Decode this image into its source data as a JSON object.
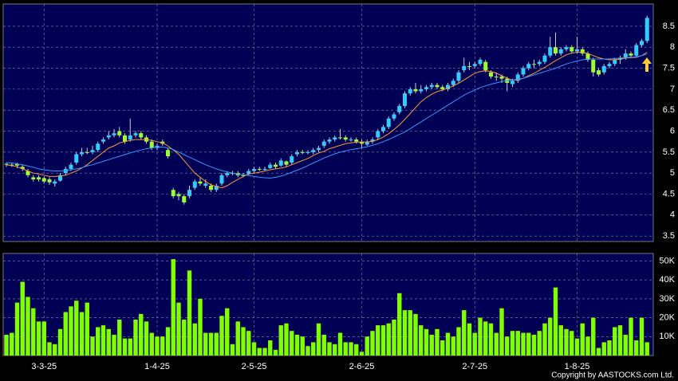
{
  "chart_data": [
    {
      "type": "candlestick",
      "categories": [
        null,
        null,
        null,
        null,
        null,
        null,
        null,
        "3-3-25",
        null,
        null,
        null,
        null,
        null,
        null,
        null,
        null,
        null,
        null,
        null,
        null,
        null,
        null,
        null,
        null,
        null,
        null,
        null,
        null,
        "1-4-25",
        null,
        null,
        null,
        null,
        null,
        null,
        null,
        null,
        null,
        null,
        null,
        null,
        null,
        null,
        null,
        null,
        null,
        "2-5-25",
        null,
        null,
        null,
        null,
        null,
        null,
        null,
        null,
        null,
        null,
        null,
        null,
        null,
        null,
        null,
        null,
        null,
        null,
        null,
        "2-6-25",
        null,
        null,
        null,
        null,
        null,
        null,
        null,
        null,
        null,
        null,
        null,
        null,
        null,
        null,
        null,
        null,
        null,
        null,
        null,
        null,
        "2-7-25",
        null,
        null,
        null,
        null,
        null,
        null,
        null,
        null,
        null,
        null,
        null,
        null,
        null,
        null,
        null,
        null,
        null,
        null,
        "1-8-25",
        null,
        null,
        null,
        null,
        null,
        null,
        null,
        null,
        null,
        null,
        null,
        null,
        null
      ],
      "ohlc": [
        [
          5.22,
          5.25,
          5.15,
          5.2
        ],
        [
          5.2,
          5.25,
          5.15,
          5.2
        ],
        [
          5.22,
          5.25,
          5.12,
          5.18
        ],
        [
          5.15,
          5.2,
          5.05,
          5.1
        ],
        [
          5.05,
          5.1,
          4.9,
          4.95
        ],
        [
          4.9,
          4.95,
          4.8,
          4.85
        ],
        [
          4.9,
          4.95,
          4.8,
          4.85
        ],
        [
          4.88,
          4.92,
          4.75,
          4.8
        ],
        [
          4.85,
          4.9,
          4.72,
          4.78
        ],
        [
          4.75,
          4.85,
          4.68,
          4.8
        ],
        [
          4.82,
          5.0,
          4.8,
          4.95
        ],
        [
          5.0,
          5.15,
          4.95,
          5.1
        ],
        [
          5.1,
          5.25,
          5.05,
          5.2
        ],
        [
          5.25,
          5.5,
          5.2,
          5.45
        ],
        [
          5.45,
          5.6,
          5.4,
          5.5
        ],
        [
          5.5,
          5.6,
          5.45,
          5.5
        ],
        [
          5.5,
          5.65,
          5.45,
          5.55
        ],
        [
          5.55,
          5.75,
          5.5,
          5.7
        ],
        [
          5.75,
          5.85,
          5.7,
          5.8
        ],
        [
          5.85,
          6.0,
          5.8,
          5.9
        ],
        [
          5.9,
          6.05,
          5.85,
          5.95
        ],
        [
          6.0,
          6.1,
          5.85,
          5.9
        ],
        [
          5.9,
          5.95,
          5.7,
          5.75
        ],
        [
          5.8,
          6.3,
          5.75,
          5.9
        ],
        [
          5.9,
          6.0,
          5.85,
          5.95
        ],
        [
          5.95,
          6.0,
          5.8,
          5.85
        ],
        [
          5.85,
          5.9,
          5.7,
          5.75
        ],
        [
          5.75,
          5.8,
          5.55,
          5.6
        ],
        [
          5.6,
          5.7,
          5.55,
          5.65
        ],
        [
          5.75,
          5.8,
          5.65,
          5.7
        ],
        [
          5.55,
          5.6,
          5.35,
          5.4
        ],
        [
          4.6,
          4.65,
          4.4,
          4.45
        ],
        [
          4.5,
          4.55,
          4.35,
          4.45
        ],
        [
          4.45,
          4.5,
          4.25,
          4.3
        ],
        [
          4.45,
          4.7,
          4.4,
          4.6
        ],
        [
          4.65,
          4.85,
          4.6,
          4.8
        ],
        [
          4.8,
          4.9,
          4.7,
          4.75
        ],
        [
          4.7,
          4.85,
          4.65,
          4.75
        ],
        [
          4.7,
          4.75,
          4.55,
          4.6
        ],
        [
          4.6,
          4.75,
          4.55,
          4.7
        ],
        [
          4.75,
          5.0,
          4.7,
          4.95
        ],
        [
          4.95,
          5.05,
          4.9,
          5.0
        ],
        [
          5.0,
          5.05,
          4.95,
          5.0
        ],
        [
          5.0,
          5.05,
          4.9,
          4.95
        ],
        [
          4.95,
          5.0,
          4.9,
          4.95
        ],
        [
          4.98,
          5.1,
          4.95,
          5.05
        ],
        [
          5.05,
          5.15,
          5.0,
          5.1
        ],
        [
          5.1,
          5.15,
          5.05,
          5.1
        ],
        [
          5.08,
          5.15,
          5.05,
          5.1
        ],
        [
          5.12,
          5.25,
          5.1,
          5.2
        ],
        [
          5.2,
          5.25,
          5.1,
          5.15
        ],
        [
          5.18,
          5.35,
          5.15,
          5.3
        ],
        [
          5.28,
          5.3,
          5.15,
          5.2
        ],
        [
          5.25,
          5.45,
          5.2,
          5.4
        ],
        [
          5.45,
          5.55,
          5.4,
          5.5
        ],
        [
          5.5,
          5.55,
          5.45,
          5.5
        ],
        [
          5.48,
          5.55,
          5.45,
          5.5
        ],
        [
          5.5,
          5.6,
          5.45,
          5.55
        ],
        [
          5.55,
          5.65,
          5.5,
          5.6
        ],
        [
          5.65,
          5.8,
          5.6,
          5.75
        ],
        [
          5.75,
          5.85,
          5.7,
          5.8
        ],
        [
          5.8,
          5.9,
          5.75,
          5.85
        ],
        [
          5.85,
          6.05,
          5.8,
          5.85
        ],
        [
          5.85,
          5.9,
          5.75,
          5.8
        ],
        [
          5.78,
          5.85,
          5.75,
          5.8
        ],
        [
          5.8,
          5.85,
          5.7,
          5.75
        ],
        [
          5.75,
          5.8,
          5.6,
          5.7
        ],
        [
          5.68,
          5.8,
          5.65,
          5.75
        ],
        [
          5.75,
          5.85,
          5.7,
          5.8
        ],
        [
          5.85,
          6.05,
          5.8,
          6.0
        ],
        [
          6.0,
          6.15,
          5.95,
          6.1
        ],
        [
          6.1,
          6.35,
          6.05,
          6.3
        ],
        [
          6.3,
          6.45,
          6.25,
          6.4
        ],
        [
          6.45,
          6.65,
          6.4,
          6.6
        ],
        [
          6.6,
          6.95,
          6.55,
          6.9
        ],
        [
          6.9,
          7.05,
          6.85,
          7.0
        ],
        [
          7.0,
          7.15,
          6.9,
          6.95
        ],
        [
          6.95,
          7.1,
          6.9,
          7.0
        ],
        [
          7.0,
          7.1,
          6.95,
          7.05
        ],
        [
          7.05,
          7.15,
          7.0,
          7.1
        ],
        [
          7.1,
          7.15,
          7.0,
          7.05
        ],
        [
          7.05,
          7.1,
          6.95,
          7.0
        ],
        [
          7.0,
          7.15,
          6.95,
          7.1
        ],
        [
          7.1,
          7.25,
          7.05,
          7.2
        ],
        [
          7.2,
          7.45,
          7.15,
          7.4
        ],
        [
          7.45,
          7.75,
          7.4,
          7.55
        ],
        [
          7.55,
          7.65,
          7.45,
          7.55
        ],
        [
          7.55,
          7.65,
          7.5,
          7.6
        ],
        [
          7.6,
          7.75,
          7.55,
          7.7
        ],
        [
          7.65,
          7.7,
          7.4,
          7.45
        ],
        [
          7.4,
          7.45,
          7.25,
          7.3
        ],
        [
          7.3,
          7.4,
          7.2,
          7.3
        ],
        [
          7.3,
          7.35,
          7.15,
          7.25
        ],
        [
          7.25,
          7.3,
          6.95,
          7.15
        ],
        [
          7.12,
          7.25,
          7.05,
          7.2
        ],
        [
          7.2,
          7.4,
          7.15,
          7.35
        ],
        [
          7.35,
          7.55,
          7.3,
          7.5
        ],
        [
          7.5,
          7.65,
          7.45,
          7.6
        ],
        [
          7.6,
          7.7,
          7.5,
          7.6
        ],
        [
          7.6,
          7.7,
          7.55,
          7.65
        ],
        [
          7.65,
          7.85,
          7.6,
          7.8
        ],
        [
          7.8,
          8.25,
          7.75,
          8.0
        ],
        [
          8.0,
          8.35,
          7.8,
          7.85
        ],
        [
          7.85,
          8.0,
          7.8,
          7.95
        ],
        [
          7.95,
          8.05,
          7.9,
          8.0
        ],
        [
          8.0,
          8.05,
          7.85,
          7.9
        ],
        [
          7.9,
          8.25,
          7.85,
          7.95
        ],
        [
          7.95,
          8.0,
          7.8,
          7.85
        ],
        [
          7.85,
          7.9,
          7.65,
          7.7
        ],
        [
          7.7,
          7.75,
          7.3,
          7.4
        ],
        [
          7.45,
          7.5,
          7.3,
          7.35
        ],
        [
          7.4,
          7.6,
          7.35,
          7.55
        ],
        [
          7.55,
          7.65,
          7.5,
          7.6
        ],
        [
          7.6,
          7.75,
          7.55,
          7.7
        ],
        [
          7.7,
          7.8,
          7.6,
          7.75
        ],
        [
          7.75,
          7.95,
          7.7,
          7.85
        ],
        [
          7.85,
          7.9,
          7.75,
          7.8
        ],
        [
          7.8,
          8.1,
          7.75,
          8.05
        ],
        [
          8.05,
          8.2,
          8.0,
          8.15
        ],
        [
          8.15,
          8.75,
          8.1,
          8.7
        ]
      ],
      "up_color": "#33ccff",
      "down_color": "#99ff33",
      "lines": [
        {
          "color": "#ff9933",
          "values": [
            5.2,
            5.18,
            5.15,
            5.1,
            5.05,
            5.0,
            4.98,
            4.95,
            4.92,
            4.92,
            4.93,
            4.95,
            5.0,
            5.05,
            5.12,
            5.2,
            5.3,
            5.4,
            5.5,
            5.6,
            5.65,
            5.72,
            5.75,
            5.78,
            5.8,
            5.8,
            5.8,
            5.78,
            5.75,
            5.72,
            5.65,
            5.55,
            5.45,
            5.3,
            5.15,
            5.0,
            4.9,
            4.8,
            4.72,
            4.68,
            4.65,
            4.7,
            4.78,
            4.85,
            4.92,
            4.98,
            5.0,
            5.02,
            5.05,
            5.08,
            5.1,
            5.12,
            5.15,
            5.2,
            5.25,
            5.3,
            5.35,
            5.42,
            5.48,
            5.52,
            5.58,
            5.62,
            5.66,
            5.7,
            5.72,
            5.74,
            5.74,
            5.74,
            5.76,
            5.8,
            5.86,
            5.94,
            6.04,
            6.15,
            6.28,
            6.42,
            6.56,
            6.7,
            6.8,
            6.88,
            6.94,
            6.98,
            7.02,
            7.08,
            7.14,
            7.22,
            7.3,
            7.38,
            7.42,
            7.44,
            7.42,
            7.38,
            7.32,
            7.26,
            7.22,
            7.22,
            7.26,
            7.32,
            7.38,
            7.45,
            7.52,
            7.6,
            7.68,
            7.75,
            7.82,
            7.86,
            7.88,
            7.88,
            7.85,
            7.8,
            7.75,
            7.72,
            7.7,
            7.7,
            7.72,
            7.74,
            7.75,
            7.76,
            7.8,
            7.88
          ]
        },
        {
          "color": "#3399ff",
          "values": [
            5.25,
            5.24,
            5.22,
            5.2,
            5.17,
            5.14,
            5.1,
            5.08,
            5.06,
            5.05,
            5.05,
            5.06,
            5.08,
            5.1,
            5.13,
            5.17,
            5.2,
            5.24,
            5.28,
            5.32,
            5.36,
            5.4,
            5.44,
            5.48,
            5.52,
            5.55,
            5.58,
            5.6,
            5.62,
            5.62,
            5.6,
            5.56,
            5.5,
            5.44,
            5.38,
            5.32,
            5.26,
            5.2,
            5.15,
            5.1,
            5.06,
            5.03,
            5.0,
            4.98,
            4.96,
            4.94,
            4.92,
            4.9,
            4.89,
            4.88,
            4.9,
            4.93,
            4.97,
            5.02,
            5.07,
            5.12,
            5.18,
            5.24,
            5.3,
            5.36,
            5.41,
            5.46,
            5.5,
            5.53,
            5.56,
            5.58,
            5.6,
            5.63,
            5.66,
            5.7,
            5.75,
            5.8,
            5.86,
            5.92,
            5.98,
            6.06,
            6.14,
            6.22,
            6.3,
            6.38,
            6.46,
            6.54,
            6.62,
            6.7,
            6.78,
            6.86,
            6.92,
            6.98,
            7.04,
            7.08,
            7.12,
            7.15,
            7.18,
            7.2,
            7.22,
            7.24,
            7.26,
            7.3,
            7.34,
            7.38,
            7.42,
            7.46,
            7.5,
            7.55,
            7.6,
            7.64,
            7.67,
            7.7,
            7.72,
            7.72,
            7.72,
            7.72,
            7.72,
            7.73,
            7.74,
            7.75,
            7.76,
            7.77,
            7.8,
            7.84
          ]
        }
      ],
      "ylim": [
        3.37,
        9.03
      ],
      "yticks": [
        3.5,
        4,
        4.5,
        5,
        5.5,
        6,
        6.5,
        7,
        7.5,
        8,
        8.5
      ],
      "grid": true
    },
    {
      "type": "bar",
      "color": "#80ff00",
      "values": [
        11000,
        12000,
        28000,
        39000,
        31000,
        25000,
        18000,
        18000,
        7000,
        6000,
        14000,
        23000,
        26000,
        29000,
        23000,
        28000,
        10000,
        15000,
        16000,
        14000,
        11000,
        19000,
        9000,
        9000,
        19000,
        22000,
        18000,
        12000,
        10000,
        10000,
        15000,
        51000,
        28000,
        19000,
        45000,
        17000,
        30000,
        12000,
        12000,
        12000,
        21000,
        25000,
        6000,
        18000,
        15000,
        13000,
        7000,
        4000,
        4000,
        8000,
        3000,
        16000,
        17000,
        13000,
        11000,
        10000,
        5000,
        7000,
        17000,
        11000,
        7000,
        6000,
        12000,
        7000,
        7000,
        6000,
        2000,
        10000,
        13000,
        16000,
        16000,
        17000,
        19000,
        33000,
        24000,
        24000,
        22000,
        16000,
        14000,
        11000,
        14000,
        8000,
        12000,
        10000,
        15000,
        24000,
        17000,
        12000,
        20000,
        18000,
        17000,
        12000,
        25000,
        10000,
        13000,
        13000,
        12000,
        12000,
        11000,
        13000,
        17000,
        20000,
        36000,
        16000,
        14000,
        13000,
        9000,
        17000,
        10000,
        20000,
        4000,
        7000,
        8000,
        15000,
        16000,
        11000,
        20000,
        8000,
        20000,
        7000
      ],
      "ylim": [
        0,
        54000
      ],
      "yticks": [
        {
          "value": 10000,
          "label": "10K"
        },
        {
          "value": 20000,
          "label": "20K"
        },
        {
          "value": 30000,
          "label": "30K"
        },
        {
          "value": 40000,
          "label": "40K"
        },
        {
          "value": 50000,
          "label": "50K"
        }
      ],
      "grid": true
    }
  ],
  "footer": "Copyright by AASTOCKS.com Ltd."
}
